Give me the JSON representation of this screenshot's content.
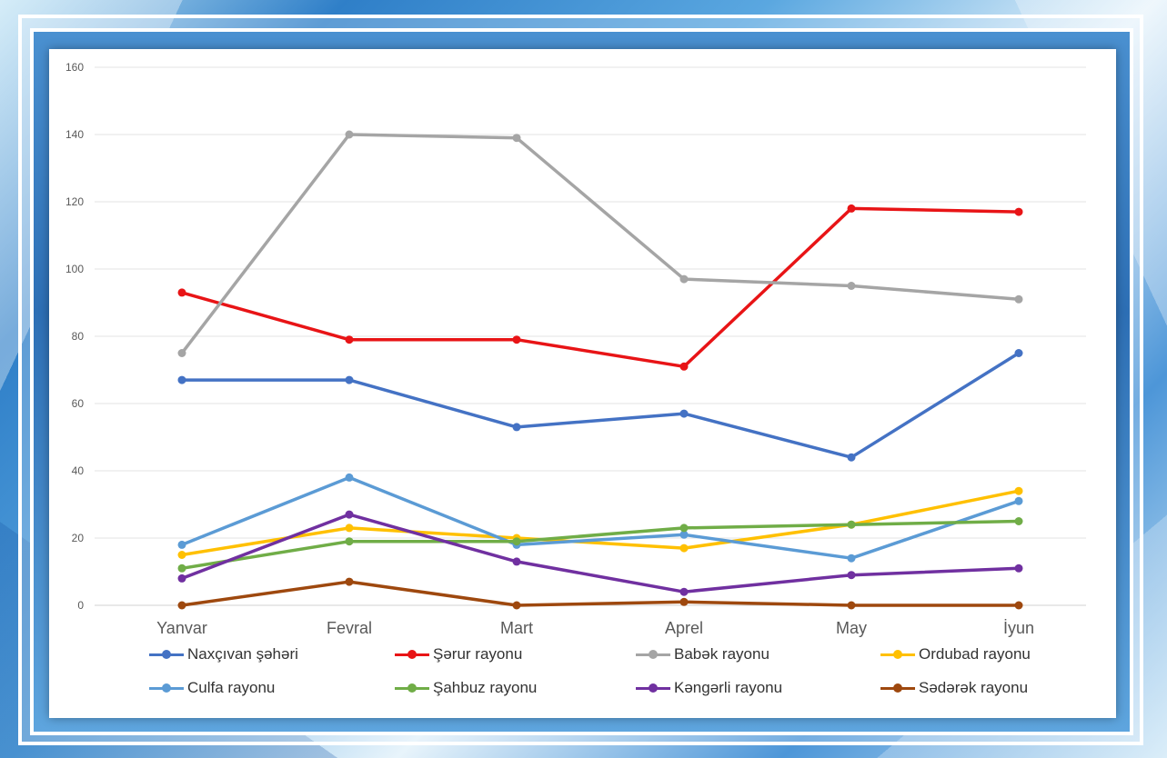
{
  "chart_data": {
    "type": "line",
    "categories": [
      "Yanvar",
      "Fevral",
      "Mart",
      "Aprel",
      "May",
      "İyun"
    ],
    "ylim": [
      0,
      160
    ],
    "yticks": [
      0,
      20,
      40,
      60,
      80,
      100,
      120,
      140,
      160
    ],
    "grid": true,
    "legend_position": "bottom",
    "series": [
      {
        "name": "Naxçıvan şəhəri",
        "color": "#4472C4",
        "values": [
          67,
          67,
          53,
          57,
          44,
          75
        ]
      },
      {
        "name": "Şərur rayonu",
        "color": "#E81416",
        "values": [
          93,
          79,
          79,
          71,
          118,
          117
        ]
      },
      {
        "name": "Babək rayonu",
        "color": "#A5A5A5",
        "values": [
          75,
          140,
          139,
          97,
          95,
          91
        ]
      },
      {
        "name": "Ordubad rayonu",
        "color": "#FFC000",
        "values": [
          15,
          23,
          20,
          17,
          24,
          34
        ]
      },
      {
        "name": "Culfa rayonu",
        "color": "#5B9BD5",
        "values": [
          18,
          38,
          18,
          21,
          14,
          31
        ]
      },
      {
        "name": "Şahbuz rayonu",
        "color": "#70AD47",
        "values": [
          11,
          19,
          19,
          23,
          24,
          25
        ]
      },
      {
        "name": "Kəngərli rayonu",
        "color": "#7030A0",
        "values": [
          8,
          27,
          13,
          4,
          9,
          11
        ]
      },
      {
        "name": "Sədərək rayonu",
        "color": "#9E480E",
        "values": [
          0,
          7,
          0,
          1,
          0,
          0
        ]
      }
    ]
  }
}
